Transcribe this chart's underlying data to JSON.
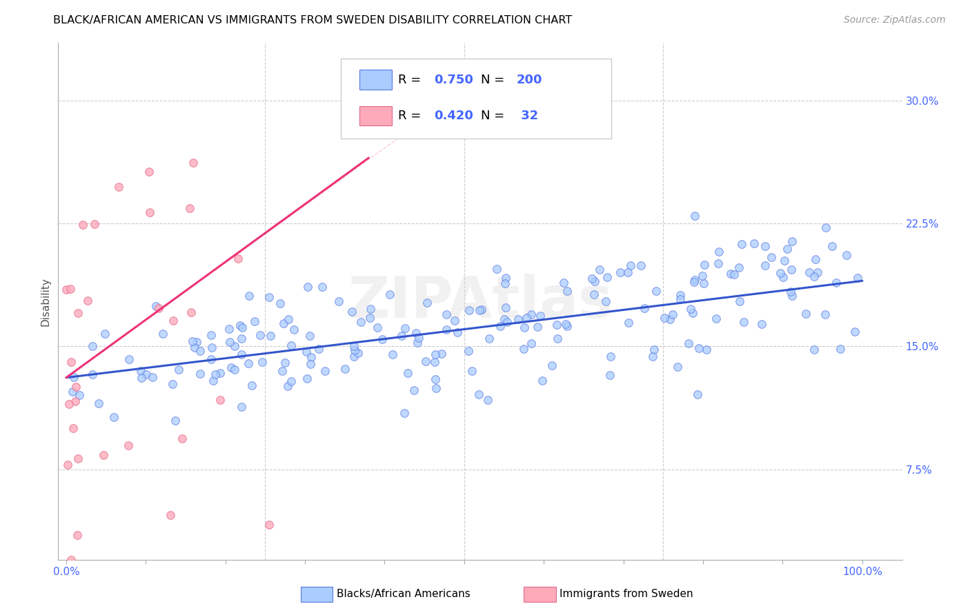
{
  "title": "BLACK/AFRICAN AMERICAN VS IMMIGRANTS FROM SWEDEN DISABILITY CORRELATION CHART",
  "source": "Source: ZipAtlas.com",
  "ylabel": "Disability",
  "yticks": [
    "7.5%",
    "15.0%",
    "22.5%",
    "30.0%"
  ],
  "ytick_values": [
    0.075,
    0.15,
    0.225,
    0.3
  ],
  "ymin": 0.02,
  "ymax": 0.335,
  "xmin": -0.01,
  "xmax": 1.05,
  "blue_R": 0.75,
  "blue_N": 200,
  "pink_R": 0.42,
  "pink_N": 32,
  "blue_scatter_color": "#AACCFF",
  "blue_edge_color": "#5577DD",
  "pink_scatter_color": "#FFAABB",
  "pink_edge_color": "#DD6688",
  "blue_line_color": "#3355CC",
  "pink_line_color": "#EE3377",
  "trendline_blue_x0": 0.0,
  "trendline_blue_x1": 1.0,
  "trendline_blue_y0": 0.131,
  "trendline_blue_y1": 0.19,
  "trendline_pink_x0": 0.0,
  "trendline_pink_x1": 0.38,
  "trendline_pink_y0": 0.131,
  "trendline_pink_y1": 0.265,
  "watermark": "ZIPAtlas",
  "legend_blue_text": "R = 0.750   N = 200",
  "legend_pink_text": "R = 0.420   N =  32",
  "legend_R_label": "R = ",
  "legend_N_label": "N = ",
  "blue_R_val": "0.750",
  "blue_N_val": "200",
  "pink_R_val": "0.420",
  "pink_N_val": "32",
  "text_color_blue": "#4466FF",
  "grid_color": "#CCCCCC",
  "title_fontsize": 11.5,
  "source_fontsize": 10,
  "tick_fontsize": 11,
  "legend_fontsize": 13,
  "ylabel_fontsize": 11,
  "watermark_fontsize": 60
}
